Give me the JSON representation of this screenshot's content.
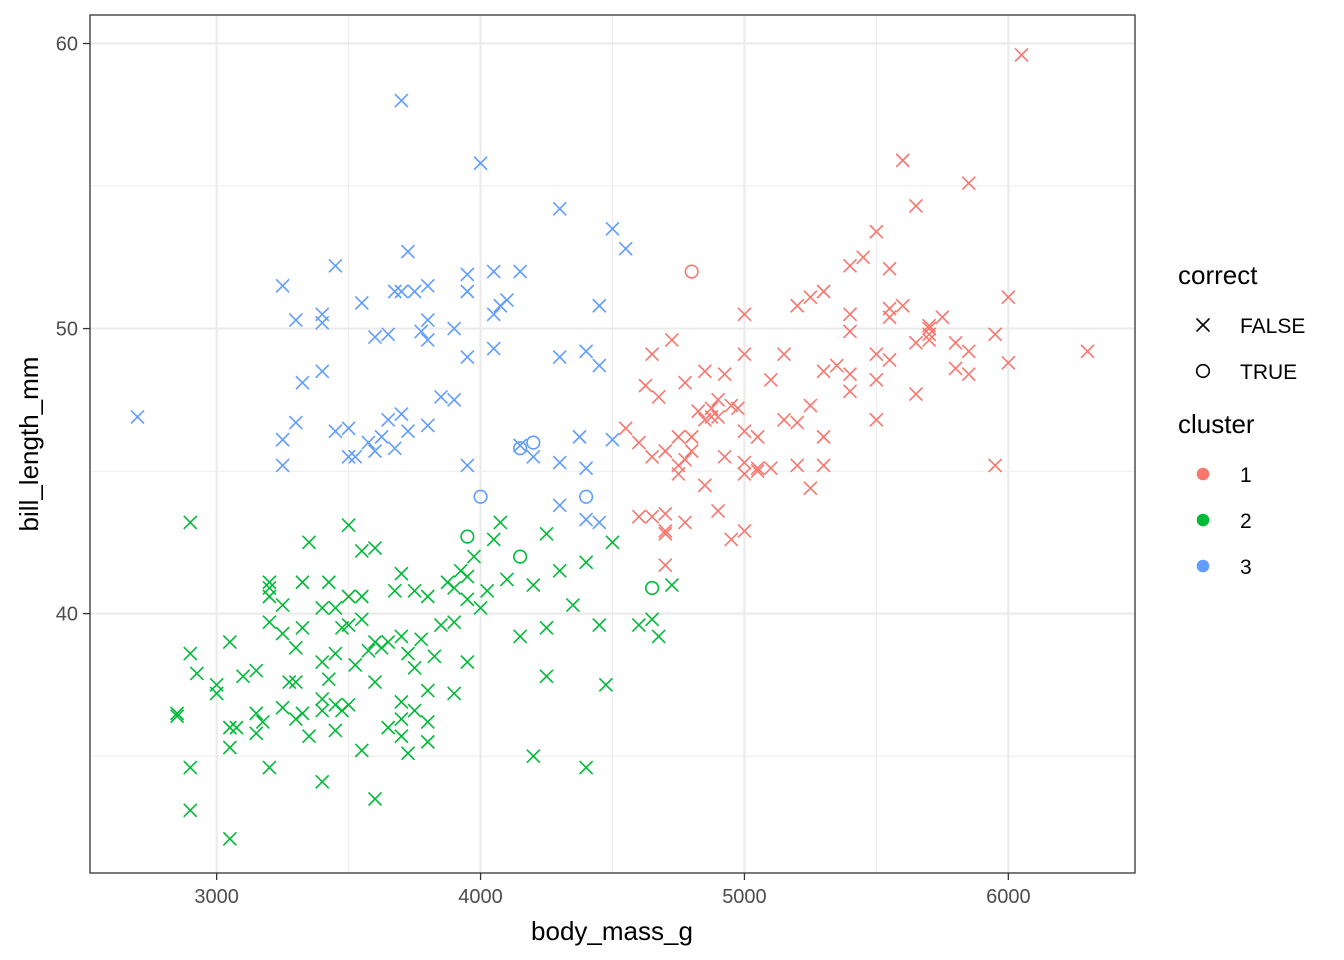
{
  "chart_data": {
    "type": "scatter",
    "title": "",
    "xlabel": "body_mass_g",
    "ylabel": "bill_length_mm",
    "xlim": [
      2520,
      6480
    ],
    "ylim": [
      30.9,
      61
    ],
    "x_ticks": [
      3000,
      4000,
      5000,
      6000
    ],
    "y_ticks": [
      40,
      50,
      60
    ],
    "x_minor": [
      3500,
      4500,
      5500
    ],
    "y_minor": [
      35,
      45,
      55
    ],
    "grid": true,
    "legend_position": "right",
    "legends": [
      {
        "title": "correct",
        "kind": "shape",
        "entries": [
          {
            "label": "FALSE",
            "shape": "cross"
          },
          {
            "label": "TRUE",
            "shape": "circle"
          }
        ]
      },
      {
        "title": "cluster",
        "kind": "color",
        "entries": [
          {
            "label": "1",
            "color": "#F8766D"
          },
          {
            "label": "2",
            "color": "#00BA38"
          },
          {
            "label": "3",
            "color": "#619CFF"
          }
        ]
      }
    ],
    "series": [
      {
        "cluster": "1",
        "color": "#F8766D",
        "false": [
          [
            4550,
            46.5
          ],
          [
            4600,
            43.4
          ],
          [
            4600,
            46.0
          ],
          [
            4625,
            48.0
          ],
          [
            4650,
            49.1
          ],
          [
            4650,
            45.5
          ],
          [
            4650,
            43.4
          ],
          [
            4675,
            47.6
          ],
          [
            4700,
            45.7
          ],
          [
            4700,
            42.9
          ],
          [
            4700,
            42.8
          ],
          [
            4700,
            43.5
          ],
          [
            4700,
            41.7
          ],
          [
            4725,
            49.6
          ],
          [
            4750,
            45.2
          ],
          [
            4750,
            44.9
          ],
          [
            4750,
            46.2
          ],
          [
            4775,
            45.4
          ],
          [
            4775,
            48.1
          ],
          [
            4775,
            43.2
          ],
          [
            4800,
            46.2
          ],
          [
            4800,
            45.7
          ],
          [
            4825,
            47.1
          ],
          [
            4850,
            48.5
          ],
          [
            4850,
            44.5
          ],
          [
            4850,
            46.8
          ],
          [
            4875,
            47.2
          ],
          [
            4875,
            46.9
          ],
          [
            4900,
            47.5
          ],
          [
            4900,
            46.9
          ],
          [
            4900,
            43.6
          ],
          [
            4925,
            45.5
          ],
          [
            4925,
            48.4
          ],
          [
            4950,
            47.3
          ],
          [
            4950,
            42.6
          ],
          [
            4975,
            47.2
          ],
          [
            5000,
            50.5
          ],
          [
            5000,
            49.1
          ],
          [
            5000,
            45.3
          ],
          [
            5000,
            44.9
          ],
          [
            5000,
            46.4
          ],
          [
            5000,
            42.9
          ],
          [
            5050,
            45.1
          ],
          [
            5050,
            45.0
          ],
          [
            5050,
            46.2
          ],
          [
            5100,
            48.2
          ],
          [
            5100,
            45.1
          ],
          [
            5150,
            49.1
          ],
          [
            5150,
            46.8
          ],
          [
            5200,
            50.8
          ],
          [
            5200,
            45.2
          ],
          [
            5200,
            46.7
          ],
          [
            5250,
            51.1
          ],
          [
            5250,
            47.3
          ],
          [
            5250,
            44.4
          ],
          [
            5300,
            51.3
          ],
          [
            5300,
            48.5
          ],
          [
            5300,
            45.2
          ],
          [
            5300,
            46.2
          ],
          [
            5350,
            48.7
          ],
          [
            5400,
            52.2
          ],
          [
            5400,
            50.5
          ],
          [
            5400,
            49.9
          ],
          [
            5400,
            47.8
          ],
          [
            5400,
            48.4
          ],
          [
            5450,
            52.5
          ],
          [
            5500,
            53.4
          ],
          [
            5500,
            49.1
          ],
          [
            5500,
            48.2
          ],
          [
            5500,
            46.8
          ],
          [
            5550,
            50.7
          ],
          [
            5550,
            52.1
          ],
          [
            5550,
            48.9
          ],
          [
            5550,
            50.4
          ],
          [
            5600,
            55.9
          ],
          [
            5600,
            50.8
          ],
          [
            5650,
            54.3
          ],
          [
            5650,
            49.5
          ],
          [
            5650,
            47.7
          ],
          [
            5700,
            50.1
          ],
          [
            5700,
            49.8
          ],
          [
            5700,
            49.6
          ],
          [
            5700,
            50.0
          ],
          [
            5750,
            50.4
          ],
          [
            5800,
            49.5
          ],
          [
            5800,
            48.6
          ],
          [
            5850,
            55.1
          ],
          [
            5850,
            49.2
          ],
          [
            5850,
            48.4
          ],
          [
            5950,
            49.8
          ],
          [
            5950,
            45.2
          ],
          [
            6000,
            51.1
          ],
          [
            6000,
            48.8
          ],
          [
            6050,
            59.6
          ],
          [
            6300,
            49.2
          ]
        ],
        "true": [
          [
            4800,
            52.0
          ]
        ]
      },
      {
        "cluster": "2",
        "color": "#00BA38",
        "false": [
          [
            2850,
            36.4
          ],
          [
            2850,
            36.5
          ],
          [
            2900,
            43.2
          ],
          [
            2900,
            38.6
          ],
          [
            2900,
            34.6
          ],
          [
            2900,
            33.1
          ],
          [
            2925,
            37.9
          ],
          [
            3000,
            37.5
          ],
          [
            3000,
            37.2
          ],
          [
            3050,
            39.0
          ],
          [
            3050,
            36.0
          ],
          [
            3050,
            35.3
          ],
          [
            3050,
            32.1
          ],
          [
            3075,
            36.0
          ],
          [
            3100,
            37.8
          ],
          [
            3150,
            38.0
          ],
          [
            3150,
            36.5
          ],
          [
            3150,
            35.8
          ],
          [
            3175,
            36.2
          ],
          [
            3200,
            41.1
          ],
          [
            3200,
            40.9
          ],
          [
            3200,
            40.6
          ],
          [
            3200,
            39.7
          ],
          [
            3200,
            34.6
          ],
          [
            3250,
            40.3
          ],
          [
            3250,
            39.3
          ],
          [
            3250,
            36.7
          ],
          [
            3275,
            37.6
          ],
          [
            3300,
            37.6
          ],
          [
            3300,
            36.3
          ],
          [
            3300,
            38.8
          ],
          [
            3325,
            41.1
          ],
          [
            3325,
            39.5
          ],
          [
            3325,
            36.5
          ],
          [
            3350,
            42.5
          ],
          [
            3350,
            35.7
          ],
          [
            3400,
            40.2
          ],
          [
            3400,
            38.3
          ],
          [
            3400,
            37.0
          ],
          [
            3400,
            36.6
          ],
          [
            3400,
            34.1
          ],
          [
            3425,
            41.1
          ],
          [
            3425,
            37.7
          ],
          [
            3450,
            40.2
          ],
          [
            3450,
            38.6
          ],
          [
            3450,
            36.8
          ],
          [
            3450,
            35.9
          ],
          [
            3475,
            36.6
          ],
          [
            3475,
            39.5
          ],
          [
            3500,
            43.1
          ],
          [
            3500,
            39.6
          ],
          [
            3500,
            36.8
          ],
          [
            3500,
            40.6
          ],
          [
            3525,
            38.2
          ],
          [
            3550,
            42.2
          ],
          [
            3550,
            40.6
          ],
          [
            3550,
            39.8
          ],
          [
            3550,
            35.2
          ],
          [
            3575,
            38.7
          ],
          [
            3600,
            42.3
          ],
          [
            3600,
            39.0
          ],
          [
            3600,
            37.6
          ],
          [
            3600,
            33.5
          ],
          [
            3625,
            38.8
          ],
          [
            3650,
            39.0
          ],
          [
            3650,
            36.0
          ],
          [
            3675,
            40.8
          ],
          [
            3700,
            41.4
          ],
          [
            3700,
            39.2
          ],
          [
            3700,
            36.9
          ],
          [
            3700,
            36.3
          ],
          [
            3700,
            35.7
          ],
          [
            3725,
            38.6
          ],
          [
            3725,
            35.1
          ],
          [
            3750,
            40.8
          ],
          [
            3750,
            38.1
          ],
          [
            3750,
            36.6
          ],
          [
            3775,
            39.1
          ],
          [
            3800,
            40.6
          ],
          [
            3800,
            37.3
          ],
          [
            3800,
            36.2
          ],
          [
            3800,
            35.5
          ],
          [
            3825,
            38.5
          ],
          [
            3850,
            39.6
          ],
          [
            3875,
            41.1
          ],
          [
            3900,
            40.9
          ],
          [
            3900,
            39.7
          ],
          [
            3900,
            37.2
          ],
          [
            3925,
            41.5
          ],
          [
            3950,
            41.3
          ],
          [
            3950,
            40.5
          ],
          [
            3950,
            38.3
          ],
          [
            3975,
            42.0
          ],
          [
            4000,
            40.2
          ],
          [
            4025,
            40.8
          ],
          [
            4050,
            42.6
          ],
          [
            4075,
            43.2
          ],
          [
            4100,
            41.2
          ],
          [
            4150,
            39.2
          ],
          [
            4200,
            41.0
          ],
          [
            4200,
            35.0
          ],
          [
            4250,
            42.8
          ],
          [
            4250,
            39.5
          ],
          [
            4250,
            37.8
          ],
          [
            4300,
            41.5
          ],
          [
            4350,
            40.3
          ],
          [
            4400,
            41.8
          ],
          [
            4400,
            34.6
          ],
          [
            4450,
            39.6
          ],
          [
            4475,
            37.5
          ],
          [
            4500,
            42.5
          ],
          [
            4600,
            39.6
          ],
          [
            4650,
            39.8
          ],
          [
            4675,
            39.2
          ],
          [
            4725,
            41.0
          ]
        ],
        "true": [
          [
            3950,
            42.7
          ],
          [
            4150,
            42.0
          ],
          [
            4650,
            40.9
          ]
        ]
      },
      {
        "cluster": "3",
        "color": "#619CFF",
        "false": [
          [
            2700,
            46.9
          ],
          [
            3250,
            51.5
          ],
          [
            3250,
            46.1
          ],
          [
            3250,
            45.2
          ],
          [
            3300,
            50.3
          ],
          [
            3300,
            46.7
          ],
          [
            3325,
            48.1
          ],
          [
            3400,
            50.5
          ],
          [
            3400,
            50.2
          ],
          [
            3400,
            48.5
          ],
          [
            3450,
            52.2
          ],
          [
            3450,
            46.4
          ],
          [
            3500,
            46.5
          ],
          [
            3500,
            45.5
          ],
          [
            3525,
            45.5
          ],
          [
            3550,
            50.9
          ],
          [
            3575,
            46.0
          ],
          [
            3600,
            49.7
          ],
          [
            3600,
            45.7
          ],
          [
            3625,
            46.2
          ],
          [
            3650,
            49.8
          ],
          [
            3650,
            46.8
          ],
          [
            3675,
            51.3
          ],
          [
            3675,
            45.8
          ],
          [
            3700,
            58.0
          ],
          [
            3700,
            47.0
          ],
          [
            3700,
            51.3
          ],
          [
            3725,
            52.7
          ],
          [
            3725,
            46.4
          ],
          [
            3750,
            51.3
          ],
          [
            3775,
            49.9
          ],
          [
            3800,
            51.5
          ],
          [
            3800,
            50.3
          ],
          [
            3800,
            49.6
          ],
          [
            3800,
            46.6
          ],
          [
            3850,
            47.6
          ],
          [
            3900,
            50.0
          ],
          [
            3900,
            47.5
          ],
          [
            3950,
            51.9
          ],
          [
            3950,
            51.3
          ],
          [
            3950,
            49.0
          ],
          [
            3950,
            45.2
          ],
          [
            4000,
            55.8
          ],
          [
            4050,
            52.0
          ],
          [
            4050,
            50.5
          ],
          [
            4050,
            49.3
          ],
          [
            4075,
            50.8
          ],
          [
            4100,
            51.0
          ],
          [
            4150,
            52.0
          ],
          [
            4150,
            45.9
          ],
          [
            4200,
            45.5
          ],
          [
            4300,
            54.2
          ],
          [
            4300,
            49.0
          ],
          [
            4300,
            45.3
          ],
          [
            4300,
            43.8
          ],
          [
            4375,
            46.2
          ],
          [
            4400,
            49.2
          ],
          [
            4400,
            45.1
          ],
          [
            4400,
            43.3
          ],
          [
            4450,
            50.8
          ],
          [
            4450,
            48.7
          ],
          [
            4450,
            43.2
          ],
          [
            4500,
            53.5
          ],
          [
            4500,
            46.1
          ],
          [
            4550,
            52.8
          ]
        ],
        "true": [
          [
            4000,
            44.1
          ],
          [
            4150,
            45.8
          ],
          [
            4200,
            46.0
          ],
          [
            4400,
            44.1
          ]
        ]
      }
    ]
  }
}
